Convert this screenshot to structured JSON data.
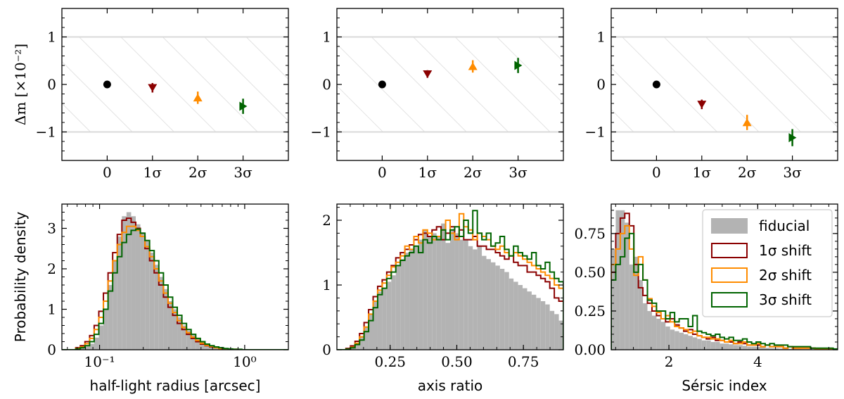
{
  "colors": {
    "fiducial": "#b3b3b3",
    "shift1": "#8b0000",
    "shift2": "#ff8c00",
    "shift3": "#006400",
    "band": "#d9d9d9",
    "marker0": "#000000"
  },
  "chart_data": [
    {
      "type": "scatter",
      "panel": "top-left",
      "ylabel": "Δm [×10⁻²]",
      "xlim": [
        -1,
        4
      ],
      "ylim": [
        -1.6,
        1.6
      ],
      "xticks": [
        0,
        1,
        2,
        3
      ],
      "xtick_labels": [
        "0",
        "1σ",
        "2σ",
        "3σ"
      ],
      "yticks": [
        -1,
        0,
        1
      ],
      "ytick_labels": [
        "−1",
        "0",
        "1"
      ],
      "band": [
        -1,
        1
      ],
      "points": [
        {
          "x": 0,
          "y": 0.0,
          "err": 0.0,
          "marker": "circle",
          "series": "fiducial"
        },
        {
          "x": 1,
          "y": -0.07,
          "err": 0.1,
          "marker": "triangle-down",
          "series": "1σ shift"
        },
        {
          "x": 2,
          "y": -0.28,
          "err": 0.13,
          "marker": "triangle-up",
          "series": "2σ shift"
        },
        {
          "x": 3,
          "y": -0.46,
          "err": 0.16,
          "marker": "triangle-right",
          "series": "3σ shift"
        }
      ]
    },
    {
      "type": "scatter",
      "panel": "top-middle",
      "ylabel": "",
      "xlim": [
        -1,
        4
      ],
      "ylim": [
        -1.6,
        1.6
      ],
      "xticks": [
        0,
        1,
        2,
        3
      ],
      "xtick_labels": [
        "0",
        "1σ",
        "2σ",
        "3σ"
      ],
      "yticks": [
        -1,
        0,
        1
      ],
      "ytick_labels": [
        "−1",
        "0",
        "1"
      ],
      "band": [
        -1,
        1
      ],
      "points": [
        {
          "x": 0,
          "y": 0.0,
          "err": 0.0,
          "marker": "circle",
          "series": "fiducial"
        },
        {
          "x": 1,
          "y": 0.22,
          "err": 0.08,
          "marker": "triangle-down",
          "series": "1σ shift"
        },
        {
          "x": 2,
          "y": 0.38,
          "err": 0.13,
          "marker": "triangle-up",
          "series": "2σ shift"
        },
        {
          "x": 3,
          "y": 0.4,
          "err": 0.16,
          "marker": "triangle-right",
          "series": "3σ shift"
        }
      ]
    },
    {
      "type": "scatter",
      "panel": "top-right",
      "ylabel": "",
      "xlim": [
        -1,
        4
      ],
      "ylim": [
        -1.6,
        1.6
      ],
      "xticks": [
        0,
        1,
        2,
        3
      ],
      "xtick_labels": [
        "0",
        "1σ",
        "2σ",
        "3σ"
      ],
      "yticks": [
        -1,
        0,
        1
      ],
      "ytick_labels": [
        "−1",
        "0",
        "1"
      ],
      "band": [
        -1,
        1
      ],
      "points": [
        {
          "x": 0,
          "y": 0.0,
          "err": 0.0,
          "marker": "circle",
          "series": "fiducial"
        },
        {
          "x": 1,
          "y": -0.42,
          "err": 0.1,
          "marker": "triangle-down",
          "series": "1σ shift"
        },
        {
          "x": 2,
          "y": -0.8,
          "err": 0.16,
          "marker": "triangle-up",
          "series": "2σ shift"
        },
        {
          "x": 3,
          "y": -1.12,
          "err": 0.18,
          "marker": "triangle-right",
          "series": "3σ shift"
        }
      ]
    },
    {
      "type": "bar",
      "panel": "bottom-left",
      "xscale": "log",
      "xlabel": "half-light radius [arcsec]",
      "ylabel": "Probability density",
      "xlim": [
        0.055,
        2.0
      ],
      "ylim": [
        0,
        3.6
      ],
      "xticks": [
        0.1,
        1.0
      ],
      "xtick_labels": [
        "10⁻¹",
        "10⁰"
      ],
      "yticks": [
        0,
        1,
        2,
        3
      ],
      "ytick_labels": [
        "0",
        "1",
        "2",
        "3"
      ],
      "bin_edges": [
        0.055,
        0.0592,
        0.0637,
        0.0685,
        0.0737,
        0.0793,
        0.0854,
        0.0918,
        0.0988,
        0.1063,
        0.1144,
        0.1231,
        0.1324,
        0.1425,
        0.1533,
        0.165,
        0.1775,
        0.191,
        0.2055,
        0.2211,
        0.2379,
        0.256,
        0.2755,
        0.2964,
        0.3189,
        0.3431,
        0.3692,
        0.3973,
        0.4275,
        0.46,
        0.4949,
        0.5325,
        0.573,
        0.6165,
        0.6634,
        0.7138,
        0.768,
        0.8264,
        0.8892,
        0.9567,
        1.0294,
        1.1077,
        1.1918,
        1.2824,
        1.3798,
        1.4847,
        1.5975,
        1.7189,
        1.8495,
        2.0
      ],
      "series": [
        {
          "name": "fiducial",
          "style": "filled",
          "values": [
            0,
            0,
            0,
            0.02,
            0.04,
            0.08,
            0.15,
            0.3,
            0.6,
            1.0,
            1.6,
            2.2,
            2.8,
            3.3,
            3.4,
            3.3,
            3.1,
            2.9,
            2.7,
            2.4,
            2.1,
            1.8,
            1.5,
            1.2,
            1.0,
            0.8,
            0.6,
            0.47,
            0.36,
            0.27,
            0.2,
            0.14,
            0.1,
            0.07,
            0.05,
            0.03,
            0.02,
            0.01,
            0.01,
            0,
            0,
            0,
            0,
            0,
            0,
            0,
            0,
            0,
            0
          ]
        },
        {
          "name": "1σ shift",
          "style": "step",
          "values": [
            0,
            0,
            0,
            0.05,
            0.1,
            0.2,
            0.35,
            0.6,
            0.95,
            1.4,
            1.9,
            2.4,
            2.85,
            3.2,
            3.25,
            3.15,
            3.0,
            2.8,
            2.5,
            2.2,
            1.9,
            1.6,
            1.3,
            1.05,
            0.85,
            0.65,
            0.5,
            0.38,
            0.28,
            0.2,
            0.14,
            0.1,
            0.07,
            0.05,
            0.03,
            0.02,
            0.01,
            0.01,
            0,
            0,
            0,
            0,
            0,
            0,
            0,
            0,
            0,
            0,
            0
          ]
        },
        {
          "name": "2σ shift",
          "style": "step",
          "values": [
            0,
            0,
            0,
            0.03,
            0.07,
            0.15,
            0.28,
            0.5,
            0.8,
            1.2,
            1.7,
            2.2,
            2.6,
            2.9,
            3.05,
            3.05,
            2.95,
            2.8,
            2.55,
            2.3,
            2.0,
            1.7,
            1.4,
            1.15,
            0.92,
            0.72,
            0.55,
            0.42,
            0.31,
            0.23,
            0.16,
            0.11,
            0.08,
            0.05,
            0.03,
            0.02,
            0.01,
            0.01,
            0,
            0,
            0,
            0,
            0,
            0,
            0,
            0,
            0,
            0,
            0
          ]
        },
        {
          "name": "3σ shift",
          "style": "step",
          "values": [
            0,
            0,
            0,
            0.02,
            0.05,
            0.1,
            0.2,
            0.38,
            0.65,
            1.0,
            1.45,
            1.9,
            2.3,
            2.65,
            2.85,
            2.95,
            2.98,
            2.88,
            2.7,
            2.45,
            2.2,
            1.9,
            1.6,
            1.3,
            1.05,
            0.85,
            0.65,
            0.5,
            0.38,
            0.28,
            0.2,
            0.14,
            0.1,
            0.07,
            0.05,
            0.03,
            0.02,
            0.01,
            0.01,
            0,
            0,
            0,
            0,
            0,
            0,
            0,
            0,
            0,
            0
          ]
        }
      ]
    },
    {
      "type": "bar",
      "panel": "bottom-middle",
      "xscale": "linear",
      "xlabel": "axis ratio",
      "ylabel": "",
      "xlim": [
        0.05,
        0.9
      ],
      "ylim": [
        0,
        2.25
      ],
      "xticks": [
        0.25,
        0.5,
        0.75
      ],
      "xtick_labels": [
        "0.25",
        "0.50",
        "0.75"
      ],
      "yticks": [
        0,
        1,
        2
      ],
      "ytick_labels": [
        "0",
        "1",
        "2"
      ],
      "bin_edges": [
        0.05,
        0.067,
        0.084,
        0.101,
        0.118,
        0.135,
        0.152,
        0.169,
        0.186,
        0.203,
        0.22,
        0.237,
        0.254,
        0.271,
        0.288,
        0.305,
        0.322,
        0.339,
        0.356,
        0.373,
        0.39,
        0.407,
        0.424,
        0.441,
        0.458,
        0.475,
        0.492,
        0.509,
        0.526,
        0.543,
        0.56,
        0.577,
        0.594,
        0.611,
        0.628,
        0.645,
        0.662,
        0.679,
        0.696,
        0.713,
        0.73,
        0.747,
        0.764,
        0.781,
        0.798,
        0.815,
        0.832,
        0.849,
        0.866,
        0.883,
        0.9
      ],
      "series": [
        {
          "name": "fiducial",
          "style": "filled",
          "values": [
            0,
            0,
            0.02,
            0.05,
            0.1,
            0.2,
            0.35,
            0.55,
            0.75,
            0.9,
            0.95,
            1.05,
            1.15,
            1.3,
            1.4,
            1.5,
            1.55,
            1.6,
            1.7,
            1.85,
            1.75,
            1.8,
            1.75,
            1.95,
            1.65,
            1.85,
            1.8,
            1.7,
            1.7,
            1.6,
            1.55,
            1.6,
            1.45,
            1.4,
            1.35,
            1.3,
            1.25,
            1.2,
            1.1,
            1.05,
            1.0,
            0.95,
            0.9,
            0.85,
            0.8,
            0.75,
            0.7,
            0.6,
            0.55,
            0.45
          ]
        },
        {
          "name": "1σ shift",
          "style": "step",
          "values": [
            0,
            0,
            0.02,
            0.06,
            0.13,
            0.25,
            0.42,
            0.62,
            0.82,
            0.98,
            1.08,
            1.2,
            1.3,
            1.42,
            1.5,
            1.55,
            1.62,
            1.7,
            1.78,
            1.8,
            1.75,
            1.85,
            1.9,
            1.7,
            1.8,
            1.9,
            1.75,
            1.85,
            1.7,
            1.7,
            1.75,
            1.6,
            1.6,
            1.55,
            1.55,
            1.5,
            1.45,
            1.4,
            1.45,
            1.35,
            1.3,
            1.3,
            1.2,
            1.2,
            1.15,
            1.1,
            1.05,
            0.95,
            0.8,
            0.75
          ]
        },
        {
          "name": "2σ shift",
          "style": "step",
          "values": [
            0,
            0,
            0.01,
            0.04,
            0.1,
            0.2,
            0.35,
            0.55,
            0.75,
            0.92,
            1.03,
            1.15,
            1.28,
            1.35,
            1.45,
            1.6,
            1.55,
            1.75,
            1.65,
            1.85,
            1.8,
            1.7,
            1.75,
            1.85,
            2.0,
            1.8,
            1.7,
            2.1,
            1.9,
            1.85,
            1.7,
            1.8,
            1.75,
            1.7,
            1.6,
            1.55,
            1.6,
            1.5,
            1.45,
            1.5,
            1.45,
            1.4,
            1.35,
            1.3,
            1.25,
            1.2,
            1.15,
            1.1,
            1.0,
            0.95
          ]
        },
        {
          "name": "3σ shift",
          "style": "step",
          "values": [
            0,
            0,
            0.01,
            0.03,
            0.08,
            0.15,
            0.28,
            0.45,
            0.65,
            0.85,
            0.95,
            1.1,
            1.2,
            1.3,
            1.38,
            1.45,
            1.5,
            1.6,
            1.5,
            1.7,
            1.65,
            1.75,
            1.7,
            1.85,
            1.7,
            1.85,
            1.9,
            1.75,
            2.0,
            1.8,
            2.15,
            1.8,
            1.7,
            1.8,
            1.6,
            1.65,
            1.75,
            1.55,
            1.45,
            1.6,
            1.5,
            1.45,
            1.4,
            1.5,
            1.3,
            1.25,
            1.35,
            1.2,
            1.1,
            1.05
          ]
        }
      ]
    },
    {
      "type": "bar",
      "panel": "bottom-right",
      "xscale": "linear",
      "xlabel": "Sérsic index",
      "ylabel": "",
      "xlim": [
        0.7,
        5.8
      ],
      "ylim": [
        0,
        0.94
      ],
      "xticks": [
        2,
        4
      ],
      "xtick_labels": [
        "2",
        "4"
      ],
      "yticks": [
        0,
        0.25,
        0.5,
        0.75
      ],
      "ytick_labels": [
        "0.00",
        "0.25",
        "0.50",
        "0.75"
      ],
      "bin_edges": [
        0.7,
        0.802,
        0.904,
        1.006,
        1.108,
        1.21,
        1.312,
        1.414,
        1.516,
        1.618,
        1.72,
        1.822,
        1.924,
        2.026,
        2.128,
        2.23,
        2.332,
        2.434,
        2.536,
        2.638,
        2.74,
        2.842,
        2.944,
        3.046,
        3.148,
        3.25,
        3.352,
        3.454,
        3.556,
        3.658,
        3.76,
        3.862,
        3.964,
        4.066,
        4.168,
        4.27,
        4.372,
        4.474,
        4.576,
        4.678,
        4.78,
        4.882,
        4.984,
        5.086,
        5.188,
        5.29,
        5.392,
        5.494,
        5.596,
        5.698,
        5.8
      ],
      "series": [
        {
          "name": "fiducial",
          "style": "filled",
          "values": [
            0.65,
            0.9,
            0.9,
            0.82,
            0.55,
            0.6,
            0.45,
            0.3,
            0.25,
            0.22,
            0.2,
            0.18,
            0.15,
            0.13,
            0.12,
            0.11,
            0.1,
            0.09,
            0.08,
            0.07,
            0.06,
            0.06,
            0.05,
            0.05,
            0.04,
            0.04,
            0.035,
            0.03,
            0.03,
            0.025,
            0.02,
            0.02,
            0.018,
            0.015,
            0.012,
            0.01,
            0.01,
            0.008,
            0.007,
            0.006,
            0.005,
            0.005,
            0.004,
            0.004,
            0.003,
            0.003,
            0.002,
            0.002,
            0.002,
            0.001
          ]
        },
        {
          "name": "1σ shift",
          "style": "step",
          "values": [
            0.5,
            0.75,
            0.85,
            0.88,
            0.8,
            0.55,
            0.4,
            0.35,
            0.3,
            0.25,
            0.22,
            0.2,
            0.18,
            0.2,
            0.16,
            0.14,
            0.12,
            0.13,
            0.1,
            0.09,
            0.08,
            0.07,
            0.08,
            0.06,
            0.06,
            0.05,
            0.05,
            0.04,
            0.05,
            0.04,
            0.03,
            0.03,
            0.03,
            0.02,
            0.03,
            0.02,
            0.02,
            0.02,
            0.01,
            0.02,
            0.01,
            0.01,
            0.01,
            0.01,
            0.01,
            0.005,
            0.005,
            0.005,
            0.005,
            0.003
          ]
        },
        {
          "name": "2σ shift",
          "style": "step",
          "values": [
            0.55,
            0.65,
            0.75,
            0.8,
            0.65,
            0.48,
            0.6,
            0.45,
            0.33,
            0.28,
            0.24,
            0.2,
            0.22,
            0.18,
            0.15,
            0.14,
            0.13,
            0.11,
            0.12,
            0.09,
            0.08,
            0.08,
            0.07,
            0.07,
            0.06,
            0.05,
            0.06,
            0.04,
            0.04,
            0.05,
            0.03,
            0.03,
            0.04,
            0.02,
            0.03,
            0.02,
            0.02,
            0.02,
            0.01,
            0.02,
            0.01,
            0.01,
            0.01,
            0.01,
            0.01,
            0.005,
            0.005,
            0.005,
            0.005,
            0.003
          ]
        },
        {
          "name": "3σ shift",
          "style": "step",
          "values": [
            0.45,
            0.55,
            0.6,
            0.72,
            0.75,
            0.5,
            0.55,
            0.45,
            0.32,
            0.3,
            0.25,
            0.25,
            0.2,
            0.24,
            0.18,
            0.2,
            0.2,
            0.15,
            0.22,
            0.12,
            0.11,
            0.1,
            0.09,
            0.1,
            0.08,
            0.07,
            0.08,
            0.06,
            0.06,
            0.07,
            0.05,
            0.04,
            0.05,
            0.04,
            0.03,
            0.04,
            0.03,
            0.03,
            0.03,
            0.02,
            0.02,
            0.02,
            0.02,
            0.02,
            0.01,
            0.01,
            0.01,
            0.01,
            0.01,
            0.005
          ]
        }
      ]
    }
  ],
  "legend": {
    "placement": "top-right of bottom-right panel",
    "entries": [
      {
        "label": "fiducial",
        "style": "filled",
        "color_key": "fiducial"
      },
      {
        "label": "1σ shift",
        "style": "outline",
        "color_key": "shift1"
      },
      {
        "label": "2σ shift",
        "style": "outline",
        "color_key": "shift2"
      },
      {
        "label": "3σ shift",
        "style": "outline",
        "color_key": "shift3"
      }
    ]
  }
}
